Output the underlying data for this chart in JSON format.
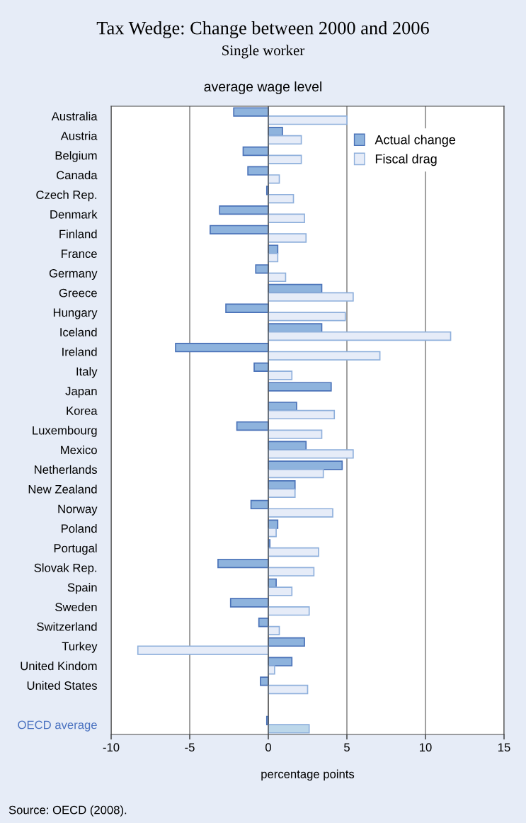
{
  "chart_data": {
    "type": "bar",
    "orientation": "horizontal",
    "title": "Tax Wedge: Change between 2000 and 2006",
    "subtitle": "Single worker",
    "annotations": [
      "average wage level",
      "Source: OECD (2008)."
    ],
    "xlabel": "percentage points",
    "categories": [
      "Australia",
      "Austria",
      "Belgium",
      "Canada",
      "Czech Rep.",
      "Denmark",
      "Finland",
      "France",
      "Germany",
      "Greece",
      "Hungary",
      "Iceland",
      "Ireland",
      "Italy",
      "Japan",
      "Korea",
      "Luxembourg",
      "Mexico",
      "Netherlands",
      "New Zealand",
      "Norway",
      "Poland",
      "Portugal",
      "Slovak Rep.",
      "Spain",
      "Sweden",
      "Switzerland",
      "Turkey",
      "United Kindom",
      "United States",
      null,
      "OECD average"
    ],
    "series": [
      {
        "name": "Actual change",
        "color": "#8eb3dd",
        "values": [
          -2.2,
          0.9,
          -1.6,
          -1.3,
          -0.1,
          -3.1,
          -3.7,
          0.6,
          -0.8,
          3.4,
          -2.7,
          3.4,
          -5.9,
          -0.9,
          4.0,
          1.8,
          -2.0,
          2.4,
          4.7,
          1.7,
          -1.1,
          0.6,
          0.1,
          -3.2,
          0.5,
          -2.4,
          -0.6,
          2.3,
          1.5,
          -0.5,
          null,
          -0.1
        ]
      },
      {
        "name": "Fiscal drag",
        "color": "#e6ecf8",
        "colors": [
          "#e6ecf8",
          "#e6ecf8",
          "#e6ecf8",
          "#e6ecf8",
          "#e6ecf8",
          "#e6ecf8",
          "#e6ecf8",
          "#e6ecf8",
          "#e6ecf8",
          "#e6ecf8",
          "#e6ecf8",
          "#e6ecf8",
          "#e6ecf8",
          "#e6ecf8",
          "#e6ecf8",
          "#e6ecf8",
          "#e6ecf8",
          "#e6ecf8",
          "#e6ecf8",
          "#e6ecf8",
          "#e6ecf8",
          "#e6ecf8",
          "#e6ecf8",
          "#e6ecf8",
          "#e6ecf8",
          "#e6ecf8",
          "#e6ecf8",
          "#e6ecf8",
          "#e6ecf8",
          "#e6ecf8",
          "#e6ecf8",
          "#bcd7ea"
        ],
        "values": [
          5.0,
          2.1,
          2.1,
          0.7,
          1.6,
          2.3,
          2.4,
          0.6,
          1.1,
          5.4,
          4.9,
          11.6,
          7.1,
          1.5,
          null,
          4.2,
          3.4,
          5.4,
          3.5,
          1.7,
          4.1,
          0.5,
          3.2,
          2.9,
          1.5,
          2.6,
          0.7,
          -8.3,
          0.4,
          2.5,
          null,
          2.6
        ]
      }
    ],
    "xlim": [
      -10,
      15
    ],
    "xticks": [
      -10,
      -5,
      0,
      5,
      10,
      15
    ],
    "grid": "x",
    "legend": "top right"
  }
}
